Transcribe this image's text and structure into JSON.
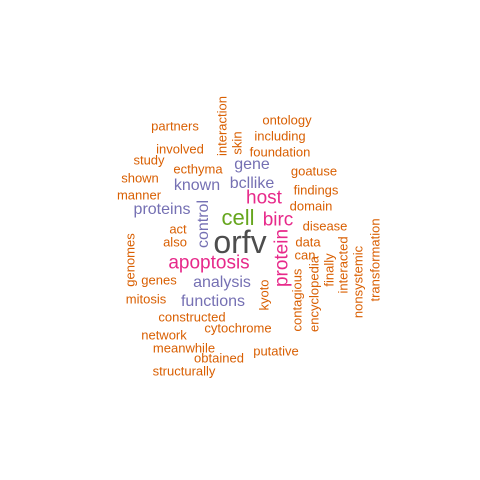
{
  "colors": {
    "top": "#4d4d4d",
    "green": "#66a61e",
    "magenta": "#e7298a",
    "purple": "#7570b3",
    "orange": "#d95f02"
  },
  "words": [
    {
      "text": "orfv",
      "weight": 10,
      "color": "#4d4d4d"
    },
    {
      "text": "cell",
      "weight": 7,
      "color": "#66a61e"
    },
    {
      "text": "host",
      "weight": 6,
      "color": "#e7298a"
    },
    {
      "text": "birc",
      "weight": 6,
      "color": "#e7298a"
    },
    {
      "text": "apoptosis",
      "weight": 6,
      "color": "#e7298a"
    },
    {
      "text": "protein",
      "weight": 6,
      "color": "#e7298a"
    },
    {
      "text": "gene",
      "weight": 4,
      "color": "#7570b3"
    },
    {
      "text": "known",
      "weight": 4,
      "color": "#7570b3"
    },
    {
      "text": "bcllike",
      "weight": 4,
      "color": "#7570b3"
    },
    {
      "text": "proteins",
      "weight": 4,
      "color": "#7570b3"
    },
    {
      "text": "control",
      "weight": 4,
      "color": "#7570b3"
    },
    {
      "text": "analysis",
      "weight": 4,
      "color": "#7570b3"
    },
    {
      "text": "functions",
      "weight": 4,
      "color": "#7570b3"
    },
    {
      "text": "ontology",
      "weight": 2,
      "color": "#d95f02"
    },
    {
      "text": "partners",
      "weight": 2,
      "color": "#d95f02"
    },
    {
      "text": "interaction",
      "weight": 2,
      "color": "#d95f02"
    },
    {
      "text": "skin",
      "weight": 2,
      "color": "#d95f02"
    },
    {
      "text": "including",
      "weight": 2,
      "color": "#d95f02"
    },
    {
      "text": "involved",
      "weight": 2,
      "color": "#d95f02"
    },
    {
      "text": "foundation",
      "weight": 2,
      "color": "#d95f02"
    },
    {
      "text": "study",
      "weight": 2,
      "color": "#d95f02"
    },
    {
      "text": "ecthyma",
      "weight": 2,
      "color": "#d95f02"
    },
    {
      "text": "goatuse",
      "weight": 2,
      "color": "#d95f02"
    },
    {
      "text": "shown",
      "weight": 2,
      "color": "#d95f02"
    },
    {
      "text": "findings",
      "weight": 2,
      "color": "#d95f02"
    },
    {
      "text": "manner",
      "weight": 2,
      "color": "#d95f02"
    },
    {
      "text": "domain",
      "weight": 2,
      "color": "#d95f02"
    },
    {
      "text": "disease",
      "weight": 2,
      "color": "#d95f02"
    },
    {
      "text": "act",
      "weight": 2,
      "color": "#d95f02"
    },
    {
      "text": "genomes",
      "weight": 2,
      "color": "#d95f02"
    },
    {
      "text": "also",
      "weight": 2,
      "color": "#d95f02"
    },
    {
      "text": "data",
      "weight": 2,
      "color": "#d95f02"
    },
    {
      "text": "transformation",
      "weight": 2,
      "color": "#d95f02"
    },
    {
      "text": "can",
      "weight": 2,
      "color": "#d95f02"
    },
    {
      "text": "interacted",
      "weight": 2,
      "color": "#d95f02"
    },
    {
      "text": "genes",
      "weight": 2,
      "color": "#d95f02"
    },
    {
      "text": "finally",
      "weight": 2,
      "color": "#d95f02"
    },
    {
      "text": "nonsystemic",
      "weight": 2,
      "color": "#d95f02"
    },
    {
      "text": "kyoto",
      "weight": 2,
      "color": "#d95f02"
    },
    {
      "text": "mitosis",
      "weight": 2,
      "color": "#d95f02"
    },
    {
      "text": "contagious",
      "weight": 2,
      "color": "#d95f02"
    },
    {
      "text": "encyclopedia",
      "weight": 2,
      "color": "#d95f02"
    },
    {
      "text": "constructed",
      "weight": 2,
      "color": "#d95f02"
    },
    {
      "text": "cytochrome",
      "weight": 2,
      "color": "#d95f02"
    },
    {
      "text": "network",
      "weight": 2,
      "color": "#d95f02"
    },
    {
      "text": "meanwhile",
      "weight": 2,
      "color": "#d95f02"
    },
    {
      "text": "putative",
      "weight": 2,
      "color": "#d95f02"
    },
    {
      "text": "obtained",
      "weight": 2,
      "color": "#d95f02"
    },
    {
      "text": "structurally",
      "weight": 2,
      "color": "#d95f02"
    }
  ]
}
